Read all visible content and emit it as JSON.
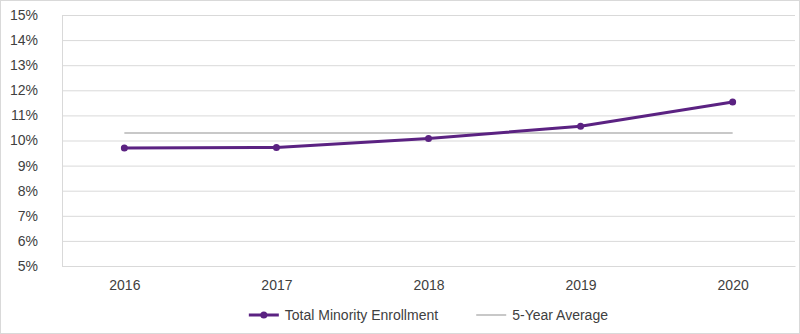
{
  "chart_data": {
    "type": "line",
    "categories": [
      "2016",
      "2017",
      "2018",
      "2019",
      "2020"
    ],
    "series": [
      {
        "name": "Total Minority Enrollment",
        "color": "#5b2282",
        "marker": "circle",
        "values": [
          9.7,
          9.72,
          10.08,
          10.57,
          11.53
        ]
      },
      {
        "name": "5-Year Average",
        "color": "#c8c8c8",
        "marker": "none",
        "values": [
          10.3,
          10.3,
          10.3,
          10.3,
          10.3
        ]
      }
    ],
    "ylim": [
      5,
      15
    ],
    "yticks": [
      {
        "value": 5,
        "label": "5%"
      },
      {
        "value": 6,
        "label": "6%"
      },
      {
        "value": 7,
        "label": "7%"
      },
      {
        "value": 8,
        "label": "8%"
      },
      {
        "value": 9,
        "label": "9%"
      },
      {
        "value": 10,
        "label": "10%"
      },
      {
        "value": 11,
        "label": "11%"
      },
      {
        "value": 12,
        "label": "12%"
      },
      {
        "value": 13,
        "label": "13%"
      },
      {
        "value": 14,
        "label": "14%"
      },
      {
        "value": 15,
        "label": "15%"
      }
    ],
    "grid": true,
    "legend": "bottom"
  }
}
